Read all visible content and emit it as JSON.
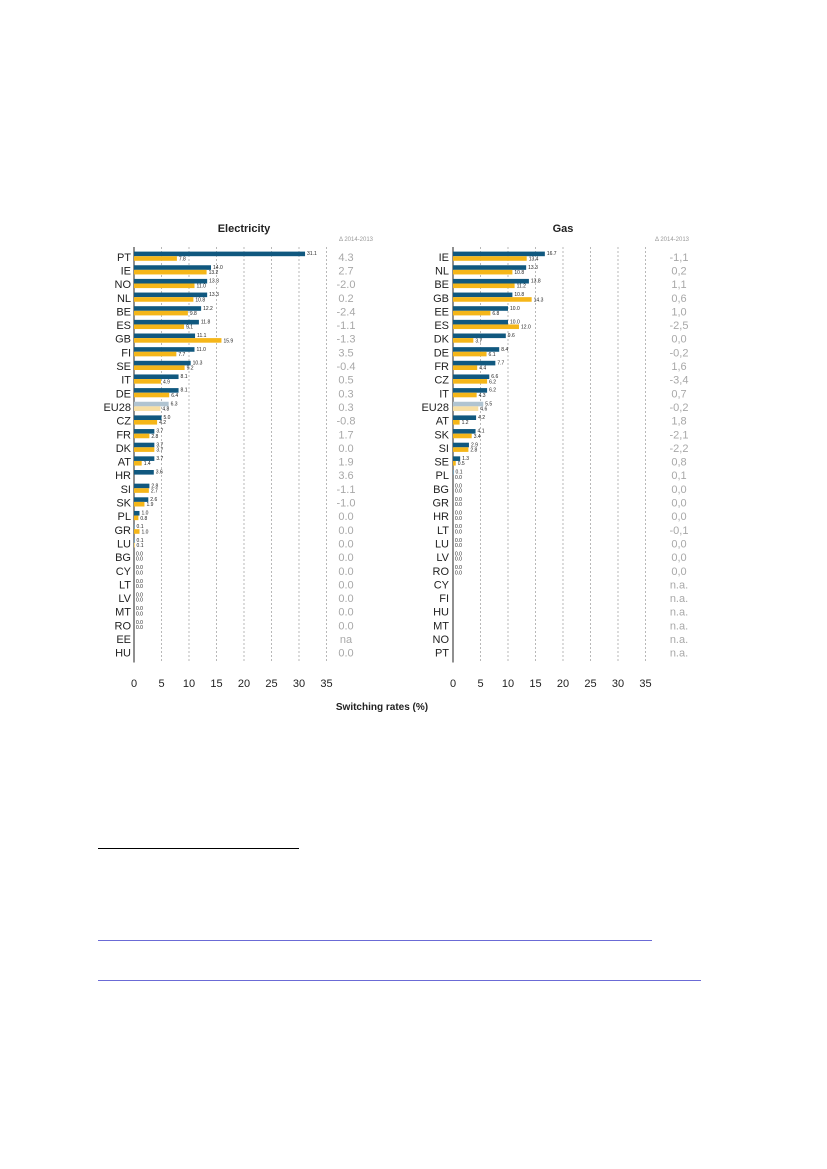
{
  "chart_data": [
    {
      "type": "bar",
      "orientation": "horizontal",
      "title": "Electricity",
      "delta_header": "Δ 2014-2013",
      "xlabel": "Switching rates (%)",
      "xlim": [
        0,
        35
      ],
      "xticks": [
        0,
        5,
        10,
        15,
        20,
        25,
        30,
        35
      ],
      "grid": "vertical dashed",
      "series_colors": [
        "#10587f",
        "#f5b619"
      ],
      "eu_colors": [
        "#b0c4d1",
        "#f7dfa4"
      ],
      "rows": [
        {
          "country": "PT",
          "a": 31.1,
          "b": 7.8,
          "la": "31.1",
          "lb": "7.8",
          "delta": "4.3"
        },
        {
          "country": "IE",
          "a": 14.0,
          "b": 13.2,
          "la": "14.0",
          "lb": "13.2",
          "delta": "2.7"
        },
        {
          "country": "NO",
          "a": 13.3,
          "b": 11.0,
          "la": "13.3",
          "lb": "11.0",
          "delta": "-2.0"
        },
        {
          "country": "NL",
          "a": 13.3,
          "b": 10.8,
          "la": "13.3",
          "lb": "10.8",
          "delta": "0.2"
        },
        {
          "country": "BE",
          "a": 12.2,
          "b": 9.8,
          "la": "12.2",
          "lb": "9.8",
          "delta": "-2.4"
        },
        {
          "country": "ES",
          "a": 11.8,
          "b": 9.1,
          "la": "11.8",
          "lb": "9.1",
          "delta": "-1.1"
        },
        {
          "country": "GB",
          "a": 11.1,
          "b": 15.9,
          "la": "11.1",
          "lb": "15.9",
          "delta": "-1.3"
        },
        {
          "country": "FI",
          "a": 11.0,
          "b": 7.7,
          "la": "11.0",
          "lb": "7.7",
          "delta": "3.5"
        },
        {
          "country": "SE",
          "a": 10.3,
          "b": 9.2,
          "la": "10.3",
          "lb": "9.2",
          "delta": "-0.4"
        },
        {
          "country": "IT",
          "a": 8.1,
          "b": 4.9,
          "la": "8.1",
          "lb": "4.9",
          "delta": "0.5"
        },
        {
          "country": "DE",
          "a": 8.1,
          "b": 6.4,
          "la": "8.1",
          "lb": "6.4",
          "delta": "0.3"
        },
        {
          "country": "EU28",
          "a": 6.3,
          "b": 4.8,
          "la": "6.3",
          "lb": "4.8",
          "delta": "0.3",
          "eu": true
        },
        {
          "country": "CZ",
          "a": 5.0,
          "b": 4.2,
          "la": "5.0",
          "lb": "4.2",
          "delta": "-0.8"
        },
        {
          "country": "FR",
          "a": 3.7,
          "b": 2.8,
          "la": "3.7",
          "lb": "2.8",
          "delta": "1.7"
        },
        {
          "country": "DK",
          "a": 3.7,
          "b": 3.7,
          "la": "3.7",
          "lb": "3.7",
          "delta": "0.0"
        },
        {
          "country": "AT",
          "a": 3.7,
          "b": 1.4,
          "la": "3.7",
          "lb": "1.4",
          "delta": "1.9"
        },
        {
          "country": "HR",
          "a": 3.6,
          "b": null,
          "la": "3.6",
          "lb": "",
          "delta": "3.6"
        },
        {
          "country": "SI",
          "a": 2.8,
          "b": 2.7,
          "la": "2.8",
          "lb": "2.7",
          "delta": "-1.1"
        },
        {
          "country": "SK",
          "a": 2.6,
          "b": 1.9,
          "la": "2.6",
          "lb": "1.9",
          "delta": "-1.0"
        },
        {
          "country": "PL",
          "a": 1.0,
          "b": 0.8,
          "la": "1.0",
          "lb": "0.8",
          "delta": "0.0"
        },
        {
          "country": "GR",
          "a": 0.1,
          "b": 1.0,
          "la": "0.1",
          "lb": "1.0",
          "delta": "0.0"
        },
        {
          "country": "LU",
          "a": 0.1,
          "b": 0.1,
          "la": "0.1",
          "lb": "0.1",
          "delta": "0.0"
        },
        {
          "country": "BG",
          "a": 0.0,
          "b": 0.0,
          "la": "0.0",
          "lb": "0.0",
          "delta": "0.0"
        },
        {
          "country": "CY",
          "a": 0.0,
          "b": 0.0,
          "la": "0.0",
          "lb": "0.0",
          "delta": "0.0"
        },
        {
          "country": "LT",
          "a": 0.0,
          "b": 0.0,
          "la": "0.0",
          "lb": "0.0",
          "delta": "0.0"
        },
        {
          "country": "LV",
          "a": 0.0,
          "b": 0.0,
          "la": "0.0",
          "lb": "0.0",
          "delta": "0.0"
        },
        {
          "country": "MT",
          "a": 0.0,
          "b": 0.0,
          "la": "0.0",
          "lb": "0.0",
          "delta": "0.0"
        },
        {
          "country": "RO",
          "a": 0.0,
          "b": 0.0,
          "la": "0.0",
          "lb": "0.0",
          "delta": "0.0"
        },
        {
          "country": "EE",
          "a": null,
          "b": null,
          "la": "",
          "lb": "",
          "delta": "na"
        },
        {
          "country": "HU",
          "a": null,
          "b": null,
          "la": "",
          "lb": "",
          "delta": "0.0"
        }
      ]
    },
    {
      "type": "bar",
      "orientation": "horizontal",
      "title": "Gas",
      "delta_header": "Δ 2014-2013",
      "xlim": [
        0,
        35
      ],
      "xticks": [
        0,
        5,
        10,
        15,
        20,
        25,
        30,
        35
      ],
      "grid": "vertical dashed",
      "series_colors": [
        "#10587f",
        "#f5b619"
      ],
      "eu_colors": [
        "#b0c4d1",
        "#f7dfa4"
      ],
      "rows": [
        {
          "country": "IE",
          "a": 16.7,
          "b": 13.4,
          "la": "16.7",
          "lb": "13.4",
          "delta": "-1,1"
        },
        {
          "country": "NL",
          "a": 13.3,
          "b": 10.8,
          "la": "13.3",
          "lb": "10.8",
          "delta": "0,2"
        },
        {
          "country": "BE",
          "a": 13.8,
          "b": 11.2,
          "la": "13.8",
          "lb": "11.2",
          "delta": "1,1"
        },
        {
          "country": "GB",
          "a": 10.8,
          "b": 14.3,
          "la": "10.8",
          "lb": "14.3",
          "delta": "0,6"
        },
        {
          "country": "EE",
          "a": 10.0,
          "b": 6.8,
          "la": "10.0",
          "lb": "6.8",
          "delta": "1,0"
        },
        {
          "country": "ES",
          "a": 10.0,
          "b": 12.0,
          "la": "10.0",
          "lb": "12.0",
          "delta": "-2,5"
        },
        {
          "country": "DK",
          "a": 9.6,
          "b": 3.7,
          "la": "9.6",
          "lb": "3.7",
          "delta": "0,0"
        },
        {
          "country": "DE",
          "a": 8.4,
          "b": 6.1,
          "la": "8.4",
          "lb": "6.1",
          "delta": "-0,2"
        },
        {
          "country": "FR",
          "a": 7.7,
          "b": 4.4,
          "la": "7.7",
          "lb": "4.4",
          "delta": "1,6"
        },
        {
          "country": "CZ",
          "a": 6.6,
          "b": 6.2,
          "la": "6.6",
          "lb": "6.2",
          "delta": "-3,4"
        },
        {
          "country": "IT",
          "a": 6.2,
          "b": 4.3,
          "la": "6.2",
          "lb": "4.3",
          "delta": "0,7"
        },
        {
          "country": "EU28",
          "a": 5.5,
          "b": 4.6,
          "la": "5.5",
          "lb": "4.6",
          "delta": "-0,2",
          "eu": true
        },
        {
          "country": "AT",
          "a": 4.2,
          "b": 1.2,
          "la": "4.2",
          "lb": "1.2",
          "delta": "1,8"
        },
        {
          "country": "SK",
          "a": 4.1,
          "b": 3.4,
          "la": "4.1",
          "lb": "3.4",
          "delta": "-2,1"
        },
        {
          "country": "SI",
          "a": 2.9,
          "b": 2.8,
          "la": "2.9",
          "lb": "2.8",
          "delta": "-2,2"
        },
        {
          "country": "SE",
          "a": 1.3,
          "b": 0.5,
          "la": "1.3",
          "lb": "0.5",
          "delta": "0,8"
        },
        {
          "country": "PL",
          "a": 0.1,
          "b": 0.0,
          "la": "0.1",
          "lb": "0.0",
          "delta": "0,1"
        },
        {
          "country": "BG",
          "a": 0.0,
          "b": 0.0,
          "la": "0.0",
          "lb": "0.0",
          "delta": "0,0"
        },
        {
          "country": "GR",
          "a": 0.0,
          "b": 0.0,
          "la": "0.0",
          "lb": "0.0",
          "delta": "0,0"
        },
        {
          "country": "HR",
          "a": 0.0,
          "b": 0.0,
          "la": "0.0",
          "lb": "0.0",
          "delta": "0,0"
        },
        {
          "country": "LT",
          "a": 0.0,
          "b": 0.0,
          "la": "0.0",
          "lb": "0.0",
          "delta": "-0,1"
        },
        {
          "country": "LU",
          "a": 0.0,
          "b": 0.0,
          "la": "0.0",
          "lb": "0.0",
          "delta": "0,0"
        },
        {
          "country": "LV",
          "a": 0.0,
          "b": 0.0,
          "la": "0.0",
          "lb": "0.0",
          "delta": "0,0"
        },
        {
          "country": "RO",
          "a": 0.0,
          "b": 0.0,
          "la": "0.0",
          "lb": "0.0",
          "delta": "0,0"
        },
        {
          "country": "CY",
          "a": null,
          "b": null,
          "la": "",
          "lb": "",
          "delta": "n.a."
        },
        {
          "country": "FI",
          "a": null,
          "b": null,
          "la": "",
          "lb": "",
          "delta": "n.a."
        },
        {
          "country": "HU",
          "a": null,
          "b": null,
          "la": "",
          "lb": "",
          "delta": "n.a."
        },
        {
          "country": "MT",
          "a": null,
          "b": null,
          "la": "",
          "lb": "",
          "delta": "n.a."
        },
        {
          "country": "NO",
          "a": null,
          "b": null,
          "la": "",
          "lb": "",
          "delta": "n.a."
        },
        {
          "country": "PT",
          "a": null,
          "b": null,
          "la": "",
          "lb": "",
          "delta": "n.a."
        }
      ]
    }
  ]
}
